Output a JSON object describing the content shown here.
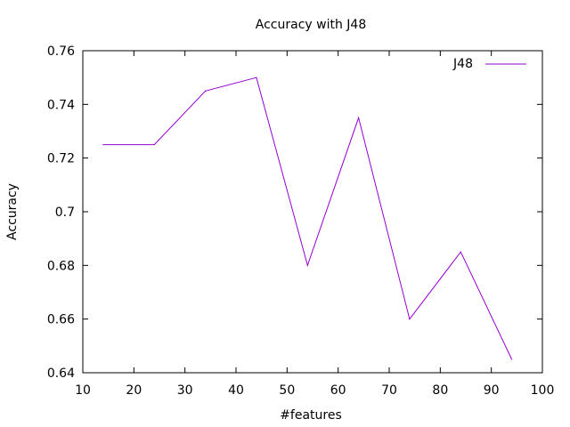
{
  "chart_data": {
    "type": "line",
    "title": "Accuracy with J48",
    "xlabel": "#features",
    "ylabel": "Accuracy",
    "xlim": [
      10,
      100
    ],
    "ylim": [
      0.64,
      0.76
    ],
    "xticks": [
      "10",
      "20",
      "30",
      "40",
      "50",
      "60",
      "70",
      "80",
      "90",
      "100"
    ],
    "yticks": [
      "0.64",
      "0.66",
      "0.68",
      "0.7",
      "0.72",
      "0.74",
      "0.76"
    ],
    "grid": false,
    "legend_position": "top-right",
    "series": [
      {
        "name": "J48",
        "color": "#9400d3",
        "x": [
          14,
          24,
          34,
          44,
          54,
          64,
          74,
          84,
          94
        ],
        "y": [
          0.725,
          0.725,
          0.745,
          0.75,
          0.68,
          0.735,
          0.66,
          0.685,
          0.645
        ]
      }
    ]
  }
}
